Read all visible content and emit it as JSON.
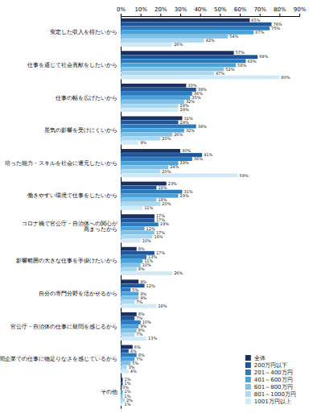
{
  "chart_data": {
    "type": "bar",
    "orientation": "horizontal",
    "categories": [
      "安定した収入を得たいから",
      "仕事を通じて社会貢献をしたいから",
      "仕事の幅を広げたいから",
      "景気の影響を受けにくいから",
      "培った能力・スキルを社会に還元したいから",
      "働きやすい環境で仕事をしたいから",
      "コロナ禍で官公庁・自治体への関心が\n高まったから",
      "影響範囲の大きな仕事を手掛けたいから",
      "自分の専門分野を活かせるから",
      "官公庁・自治体の仕事に疑問を感じるから",
      "民間企業での仕事に物足りなさを感じているから",
      "その他"
    ],
    "series": [
      {
        "name": "全体",
        "color": "#1a3060",
        "values": [
          65,
          57,
          33,
          31,
          30,
          23,
          17,
          8,
          9,
          8,
          6,
          1
        ],
        "value_labels": [
          "65%",
          "57%",
          "33%",
          "31%",
          "30%",
          "23%",
          "17%",
          "8%",
          "9%",
          "8%",
          "6%",
          "1%"
        ]
      },
      {
        "name": "200万円以下",
        "color": "#1e5799",
        "values": [
          76,
          69,
          38,
          29,
          41,
          18,
          17,
          17,
          12,
          7,
          4,
          1
        ],
        "value_labels": [
          "76%",
          "69%",
          "38%",
          "29%",
          "41%",
          "18%",
          "17%",
          "17%",
          "12%",
          "7%",
          "4%",
          "1%"
        ]
      },
      {
        "name": "201～400万円",
        "color": "#2a7abf",
        "values": [
          75,
          63,
          36,
          38,
          36,
          31,
          19,
          13,
          5,
          10,
          8,
          0
        ],
        "value_labels": [
          "75%",
          "63%",
          "36%",
          "38%",
          "36%",
          "31%",
          "19%",
          "13%",
          "5%",
          "10%",
          "8%",
          "0%"
        ]
      },
      {
        "name": "401～600万円",
        "color": "#4aa3d8",
        "values": [
          67,
          58,
          35,
          32,
          29,
          29,
          12,
          11,
          9,
          9,
          7,
          1
        ],
        "value_labels": [
          "67%",
          "58%",
          "35%",
          "32%",
          "29%",
          "29%",
          "12%",
          "11%",
          "9%",
          "9%",
          "7%",
          "1%"
        ]
      },
      {
        "name": "601～800万円",
        "color": "#80c0e8",
        "values": [
          54,
          52,
          32,
          26,
          24,
          18,
          17,
          10,
          9,
          8,
          5,
          1
        ],
        "value_labels": [
          "54%",
          "52%",
          "32%",
          "26%",
          "24%",
          "18%",
          "17%",
          "10%",
          "9%",
          "8%",
          "5%",
          "1%"
        ]
      },
      {
        "name": "801～1000万円",
        "color": "#aad8f0",
        "values": [
          42,
          47,
          29,
          20,
          20,
          20,
          16,
          8,
          7,
          7,
          3,
          2
        ],
        "value_labels": [
          "42%",
          "47%",
          "29%",
          "20%",
          "20%",
          "20%",
          "16%",
          "8%",
          "7%",
          "7%",
          "3%",
          "2%"
        ]
      },
      {
        "name": "1001万円以上",
        "color": "#d0eaf8",
        "values": [
          26,
          80,
          29,
          9,
          59,
          11,
          10,
          26,
          18,
          13,
          4,
          1
        ],
        "value_labels": [
          "26%",
          "80%",
          "29%",
          "9%",
          "59%",
          "11%",
          "10%",
          "26%",
          "18%",
          "13%",
          "4%",
          "1%"
        ]
      }
    ],
    "xlim": [
      0,
      90
    ],
    "xticks": [
      {
        "value": 0,
        "label": "0%"
      },
      {
        "value": 10,
        "label": "10%"
      },
      {
        "value": 20,
        "label": "20%"
      },
      {
        "value": 30,
        "label": "30%"
      },
      {
        "value": 40,
        "label": "40%"
      },
      {
        "value": 50,
        "label": "50%"
      },
      {
        "value": 60,
        "label": "60%"
      },
      {
        "value": 70,
        "label": "70%"
      },
      {
        "value": 80,
        "label": "80%"
      },
      {
        "value": 90,
        "label": "90%"
      }
    ],
    "data_labels": true,
    "legend": "lower right",
    "grid": false
  }
}
